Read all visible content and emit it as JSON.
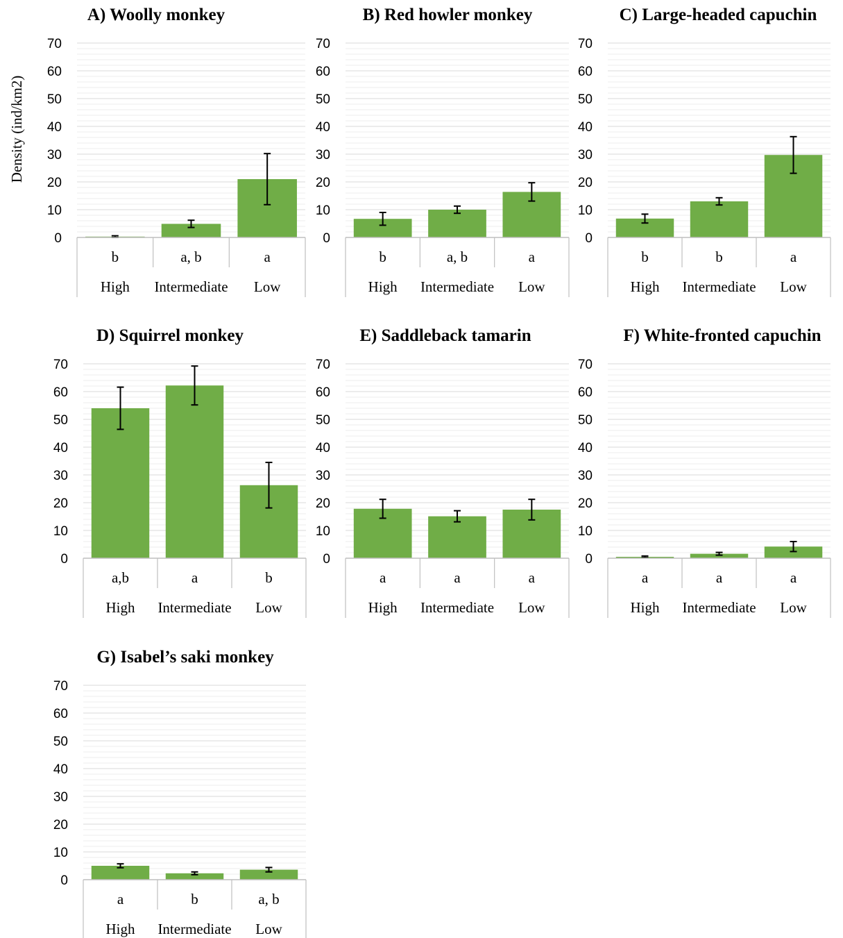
{
  "ylabel": "Density (ind/km2)",
  "chart_data": [
    {
      "type": "bar",
      "title": "A) Woolly monkey",
      "categories": [
        "High",
        "Intermediate",
        "Low"
      ],
      "letters": [
        "b",
        "a, b",
        "a"
      ],
      "values": [
        0.3,
        4.9,
        21.0
      ],
      "error": [
        0.3,
        1.3,
        9.2
      ],
      "ylim": [
        0,
        70
      ],
      "yticks": [
        0,
        10,
        20,
        30,
        40,
        50,
        60,
        70
      ],
      "grid": true,
      "ylabel": "Density (ind/km2)",
      "color": "#70ad47"
    },
    {
      "type": "bar",
      "title": "B) Red howler monkey",
      "categories": [
        "High",
        "Intermediate",
        "Low"
      ],
      "letters": [
        "b",
        "a, b",
        "a"
      ],
      "values": [
        6.7,
        10.0,
        16.4
      ],
      "error": [
        2.3,
        1.3,
        3.3
      ],
      "ylim": [
        0,
        70
      ],
      "yticks": [
        0,
        10,
        20,
        30,
        40,
        50,
        60,
        70
      ],
      "grid": true,
      "ylabel": "",
      "color": "#70ad47"
    },
    {
      "type": "bar",
      "title": "C) Large-headed capuchin",
      "categories": [
        "High",
        "Intermediate",
        "Low"
      ],
      "letters": [
        "b",
        "b",
        "a"
      ],
      "values": [
        6.8,
        13.0,
        29.7
      ],
      "error": [
        1.6,
        1.3,
        6.6
      ],
      "ylim": [
        0,
        70
      ],
      "yticks": [
        0,
        10,
        20,
        30,
        40,
        50,
        60,
        70
      ],
      "grid": true,
      "ylabel": "",
      "color": "#70ad47"
    },
    {
      "type": "bar",
      "title": "D) Squirrel monkey",
      "categories": [
        "High",
        "Intermediate",
        "Low"
      ],
      "letters": [
        "a,b",
        "a",
        "b"
      ],
      "values": [
        54.0,
        62.2,
        26.3
      ],
      "error": [
        7.6,
        7.0,
        8.2
      ],
      "ylim": [
        0,
        70
      ],
      "yticks": [
        0,
        10,
        20,
        30,
        40,
        50,
        60,
        70
      ],
      "grid": true,
      "ylabel": "",
      "color": "#70ad47"
    },
    {
      "type": "bar",
      "title": "E) Saddleback tamarin",
      "categories": [
        "High",
        "Intermediate",
        "Low"
      ],
      "letters": [
        "a",
        "a",
        "a"
      ],
      "values": [
        17.8,
        15.1,
        17.5
      ],
      "error": [
        3.4,
        2.0,
        3.7
      ],
      "ylim": [
        0,
        70
      ],
      "yticks": [
        0,
        10,
        20,
        30,
        40,
        50,
        60,
        70
      ],
      "grid": true,
      "ylabel": "",
      "color": "#70ad47"
    },
    {
      "type": "bar",
      "title": "F) White-fronted capuchin",
      "categories": [
        "High",
        "Intermediate",
        "Low"
      ],
      "letters": [
        "a",
        "a",
        "a"
      ],
      "values": [
        0.5,
        1.6,
        4.2
      ],
      "error": [
        0.3,
        0.5,
        1.8
      ],
      "ylim": [
        0,
        70
      ],
      "yticks": [
        0,
        10,
        20,
        30,
        40,
        50,
        60,
        70
      ],
      "grid": true,
      "ylabel": "",
      "color": "#70ad47"
    },
    {
      "type": "bar",
      "title": "G) Isabel’s saki monkey",
      "categories": [
        "High",
        "Intermediate",
        "Low"
      ],
      "letters": [
        "a",
        "b",
        "a, b"
      ],
      "values": [
        5.0,
        2.3,
        3.6
      ],
      "error": [
        0.7,
        0.5,
        0.8
      ],
      "ylim": [
        0,
        70
      ],
      "yticks": [
        0,
        10,
        20,
        30,
        40,
        50,
        60,
        70
      ],
      "grid": true,
      "ylabel": "",
      "color": "#70ad47"
    }
  ]
}
